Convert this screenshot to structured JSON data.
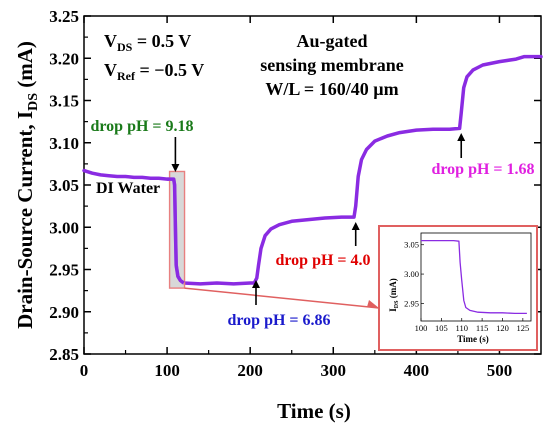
{
  "chart_data": {
    "type": "line",
    "xlabel": "Time (s)",
    "ylabel": "Drain-Source Current, I",
    "ylabel_sub": "DS",
    "ylabel_unit": " (mA)",
    "xlim": [
      0,
      550
    ],
    "ylim": [
      2.85,
      3.25
    ],
    "x_ticks": [
      "0",
      "100",
      "200",
      "300",
      "400",
      "500"
    ],
    "y_ticks": [
      "2.85",
      "2.90",
      "2.95",
      "3.00",
      "3.05",
      "3.10",
      "3.15",
      "3.20",
      "3.25"
    ],
    "grid": false,
    "series": [
      {
        "color": "#8a2be2",
        "points": [
          [
            0,
            3.067
          ],
          [
            10,
            3.064
          ],
          [
            20,
            3.062
          ],
          [
            30,
            3.061
          ],
          [
            40,
            3.06
          ],
          [
            50,
            3.06
          ],
          [
            60,
            3.059
          ],
          [
            70,
            3.059
          ],
          [
            80,
            3.058
          ],
          [
            90,
            3.058
          ],
          [
            100,
            3.057
          ],
          [
            108,
            3.057
          ],
          [
            109,
            3.05
          ],
          [
            110,
            3.0
          ],
          [
            111,
            2.955
          ],
          [
            113,
            2.942
          ],
          [
            116,
            2.937
          ],
          [
            120,
            2.934
          ],
          [
            140,
            2.933
          ],
          [
            160,
            2.934
          ],
          [
            180,
            2.933
          ],
          [
            200,
            2.934
          ],
          [
            205,
            2.934
          ],
          [
            208,
            2.94
          ],
          [
            210,
            2.955
          ],
          [
            213,
            2.975
          ],
          [
            218,
            2.99
          ],
          [
            225,
            2.998
          ],
          [
            235,
            3.003
          ],
          [
            250,
            3.007
          ],
          [
            270,
            3.009
          ],
          [
            290,
            3.011
          ],
          [
            310,
            3.012
          ],
          [
            325,
            3.012
          ],
          [
            327,
            3.025
          ],
          [
            330,
            3.06
          ],
          [
            334,
            3.08
          ],
          [
            340,
            3.092
          ],
          [
            350,
            3.102
          ],
          [
            365,
            3.108
          ],
          [
            380,
            3.112
          ],
          [
            400,
            3.115
          ],
          [
            420,
            3.116
          ],
          [
            440,
            3.116
          ],
          [
            452,
            3.117
          ],
          [
            454,
            3.135
          ],
          [
            457,
            3.165
          ],
          [
            461,
            3.178
          ],
          [
            468,
            3.186
          ],
          [
            480,
            3.192
          ],
          [
            500,
            3.196
          ],
          [
            520,
            3.199
          ],
          [
            530,
            3.202
          ],
          [
            550,
            3.202
          ]
        ]
      }
    ],
    "annotations": [
      {
        "text": "drop pH = 9.18",
        "color": "#1a7a1a",
        "at_x": 108
      },
      {
        "text": "DI Water",
        "color": "#000000"
      },
      {
        "text": "drop pH = 6.86",
        "color": "#1a1acc",
        "at_x": 207
      },
      {
        "text": "drop pH = 4.0",
        "color": "#e00000",
        "at_x": 327
      },
      {
        "text": "drop pH = 1.68",
        "color": "#e020e0",
        "at_x": 454
      }
    ],
    "info": {
      "vds": "V",
      "vds_sub": "DS",
      "vds_val": " = 0.5 V",
      "vref": "V",
      "vref_sub": "Ref",
      "vref_val": " = −0.5 V",
      "line1": "Au-gated",
      "line2": "sensing membrane",
      "line3": "W/L = 160/40 µm"
    },
    "inset": {
      "xlim": [
        100,
        127
      ],
      "ylim": [
        2.92,
        3.07
      ],
      "x_ticks": [
        "100",
        "105",
        "110",
        "115",
        "120",
        "125"
      ],
      "y_ticks": [
        "2.95",
        "3.00",
        "3.05"
      ],
      "xlabel": "Time (s)",
      "ylabel": "I",
      "ylabel_sub": "DS",
      "ylabel_unit": " (mA)",
      "points": [
        [
          100,
          3.057
        ],
        [
          105,
          3.057
        ],
        [
          108,
          3.057
        ],
        [
          109.3,
          3.056
        ],
        [
          109.6,
          3.02
        ],
        [
          110,
          2.99
        ],
        [
          110.5,
          2.955
        ],
        [
          111,
          2.943
        ],
        [
          112,
          2.938
        ],
        [
          114,
          2.935
        ],
        [
          117,
          2.934
        ],
        [
          120,
          2.934
        ],
        [
          123,
          2.933
        ],
        [
          126,
          2.933
        ]
      ]
    },
    "colors": {
      "line": "#8a2be2",
      "highlight_box": "#e88080",
      "arrow_line": "#e06060",
      "inset_frame": "#e06060"
    }
  }
}
